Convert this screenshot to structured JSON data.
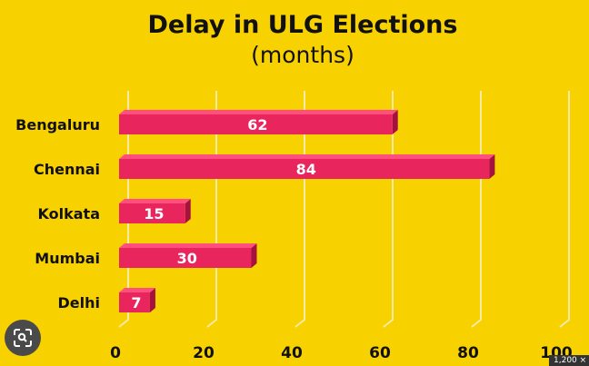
{
  "chart_data": {
    "type": "bar",
    "orientation": "horizontal",
    "title": "Delay in ULG Elections",
    "subtitle": "(months)",
    "categories": [
      "Bengaluru",
      "Chennai",
      "Kolkata",
      "Mumbai",
      "Delhi"
    ],
    "values": [
      62,
      84,
      15,
      30,
      7
    ],
    "xlim": [
      0,
      100
    ],
    "xticks": [
      0,
      20,
      40,
      60,
      80,
      100
    ],
    "grid": true,
    "data_labels": true,
    "colors": {
      "background": "#f8d100",
      "bar_front": "#e8255d",
      "bar_top": "#ff4f7e",
      "bar_side": "#a3133d",
      "grid": "#f6eaa6",
      "text": "#111111",
      "label_text": "#ffffff"
    }
  },
  "overlay": {
    "lens_icon": "image-search-icon",
    "resolution_text": "1,200 ×"
  }
}
